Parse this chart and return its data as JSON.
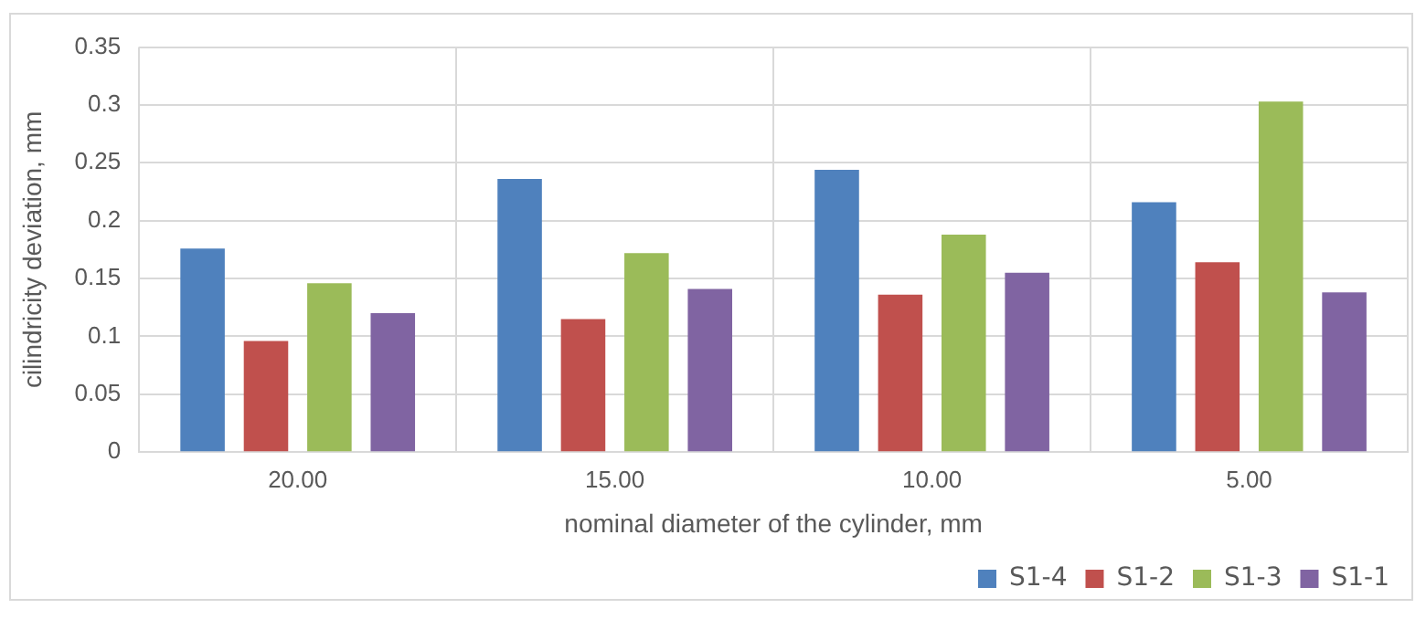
{
  "chart_data": {
    "type": "bar",
    "xlabel": "nominal diameter of the cylinder, mm",
    "ylabel": "cilindricity deviation, mm",
    "categories": [
      "20.00",
      "15.00",
      "10.00",
      "5.00"
    ],
    "series": [
      {
        "name": "S1-4",
        "color": "#4f81bd",
        "values": [
          0.176,
          0.236,
          0.244,
          0.216
        ]
      },
      {
        "name": "S1-2",
        "color": "#c0504d",
        "values": [
          0.096,
          0.115,
          0.136,
          0.164
        ]
      },
      {
        "name": "S1-3",
        "color": "#9bbb59",
        "values": [
          0.146,
          0.172,
          0.188,
          0.303
        ]
      },
      {
        "name": "S1-1",
        "color": "#8064a2",
        "values": [
          0.12,
          0.141,
          0.155,
          0.138
        ]
      }
    ],
    "ylim": [
      0,
      0.35
    ],
    "yticks": [
      0,
      0.05,
      0.1,
      0.15,
      0.2,
      0.25,
      0.3,
      0.35
    ],
    "grid": true,
    "legend": "bottom right"
  }
}
